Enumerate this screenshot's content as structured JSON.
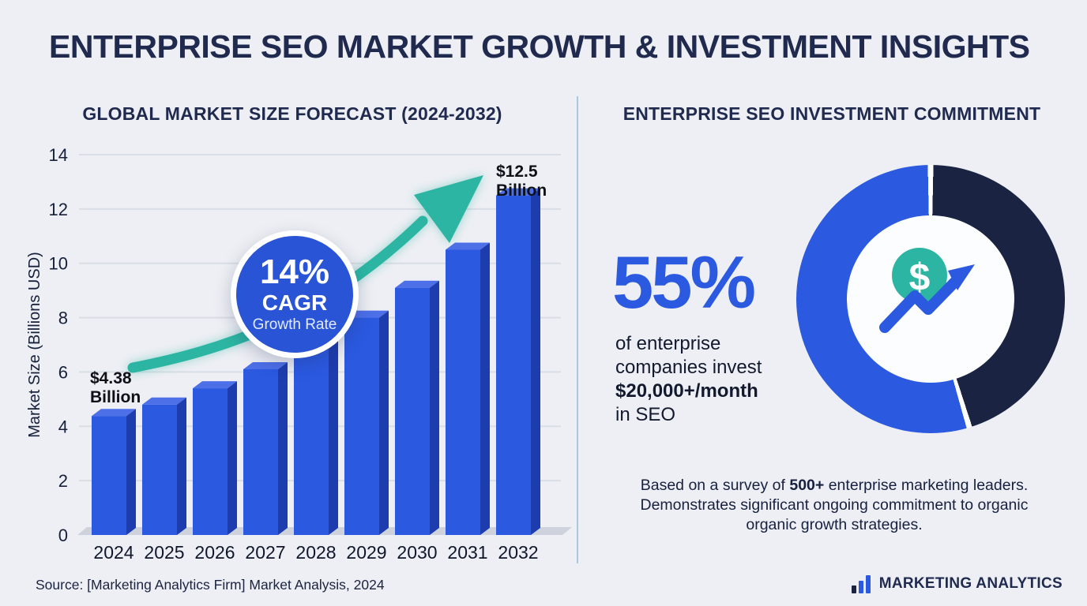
{
  "page": {
    "title": "ENTERPRISE SEO MARKET GROWTH & INVESTMENT INSIGHTS",
    "source_note": "Source: [Marketing Analytics Firm] Market Analysis, 2024",
    "brand": "MARKETING ANALYTICS"
  },
  "left_panel": {
    "heading": "GLOBAL MARKET SIZE FORECAST (2024-2032)",
    "badge": {
      "value": "14%",
      "label": "CAGR",
      "sublabel": "Growth Rate"
    },
    "start_annotation": {
      "line1": "$4.38",
      "line2": "Billion"
    },
    "end_annotation": {
      "line1": "$12.5",
      "line2": "Billion"
    }
  },
  "chart_data": {
    "type": "bar",
    "title": "GLOBAL MARKET SIZE FORECAST (2024-2032)",
    "categories": [
      "2024",
      "2025",
      "2026",
      "2027",
      "2028",
      "2029",
      "2030",
      "2031",
      "2032"
    ],
    "values": [
      4.38,
      4.8,
      5.4,
      6.1,
      7.0,
      8.0,
      9.1,
      10.5,
      12.5
    ],
    "xlabel": "",
    "ylabel": "Market Size (Billions USD)",
    "ylim": [
      0,
      14
    ],
    "yticks": [
      0,
      2,
      4,
      6,
      8,
      10,
      12,
      14
    ],
    "grid": true,
    "annotations": [
      {
        "category": "2024",
        "text": "$4.38 Billion"
      },
      {
        "category": "2032",
        "text": "$12.5 Billion"
      },
      {
        "type": "badge",
        "text": "14% CAGR Growth Rate"
      },
      {
        "type": "trend-arrow",
        "direction": "up"
      }
    ]
  },
  "right_panel": {
    "heading": "ENTERPRISE SEO INVESTMENT COMMITMENT",
    "stat_value": "55%",
    "stat_lines": {
      "l1": "of enterprise",
      "l2": "companies invest",
      "l3": "$20,000+/month",
      "l4": "in SEO"
    },
    "donut": {
      "percent_blue": 55,
      "percent_dark": 45,
      "coin_symbol": "$"
    },
    "note": {
      "l1a": "Based on a survey of ",
      "l1b": "500+",
      "l1c": " enterprise marketing leaders.",
      "l2": "Demonstrates significant ongoing commitment to organic",
      "l3": "organic growth strategies."
    }
  },
  "colors": {
    "background": "#edeff4",
    "navy_text": "#1f2a4e",
    "bar_front": "#2b59e0",
    "bar_side": "#1d3cae",
    "bar_top": "#4d6fe8",
    "floor": "#cdd2dc",
    "gridline": "#d9dde5",
    "teal": "#2cb5a2",
    "badge_blue": "#2a54d6",
    "donut_blue": "#2b59e0",
    "donut_dark": "#1a2342",
    "axis_text": "#16203a",
    "stat_blue": "#2b59e0",
    "divider": "#a7c9dc"
  }
}
